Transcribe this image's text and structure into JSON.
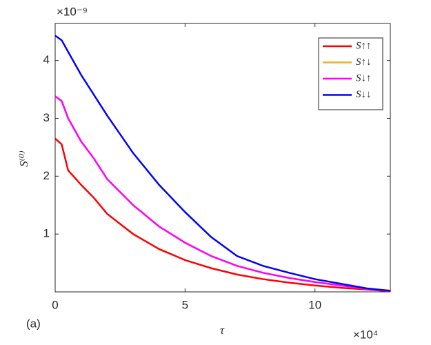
{
  "chart_data": {
    "type": "line",
    "x_label": "τ",
    "y_label": "S⁽⁰⁾",
    "x_multiplier": "×10⁴",
    "y_multiplier": "×10⁻⁹",
    "panel_label": "(a)",
    "x": [
      0,
      0.25,
      0.5,
      1,
      1.5,
      2,
      3,
      4,
      5,
      6,
      7,
      8,
      9,
      10,
      11,
      12,
      12.9
    ],
    "series": [
      {
        "name": "S↑↑",
        "color": "#ff0000",
        "values": [
          2.65,
          2.55,
          2.1,
          1.85,
          1.62,
          1.35,
          1.0,
          0.74,
          0.55,
          0.41,
          0.3,
          0.22,
          0.16,
          0.11,
          0.07,
          0.04,
          0.01
        ]
      },
      {
        "name": "S↑↓",
        "color": "#edb120",
        "values": [
          3.38,
          3.3,
          3.0,
          2.6,
          2.3,
          1.95,
          1.5,
          1.13,
          0.85,
          0.62,
          0.45,
          0.33,
          0.24,
          0.17,
          0.11,
          0.05,
          0.02
        ]
      },
      {
        "name": "S↓↑",
        "color": "#ff00ff",
        "values": [
          3.38,
          3.3,
          3.0,
          2.6,
          2.3,
          1.95,
          1.5,
          1.13,
          0.85,
          0.62,
          0.45,
          0.33,
          0.24,
          0.17,
          0.11,
          0.05,
          0.02
        ]
      },
      {
        "name": "S↓↓",
        "color": "#0000ff",
        "values": [
          4.43,
          4.35,
          4.15,
          3.75,
          3.4,
          3.05,
          2.4,
          1.85,
          1.38,
          0.95,
          0.62,
          0.45,
          0.33,
          0.22,
          0.14,
          0.06,
          0.02
        ]
      }
    ],
    "xlim": [
      0,
      12.9
    ],
    "ylim": [
      0,
      4.64
    ],
    "xticks": [
      0,
      5,
      10
    ],
    "yticks": [
      1,
      2,
      3,
      4
    ],
    "legend": "upper right",
    "grid": false
  }
}
